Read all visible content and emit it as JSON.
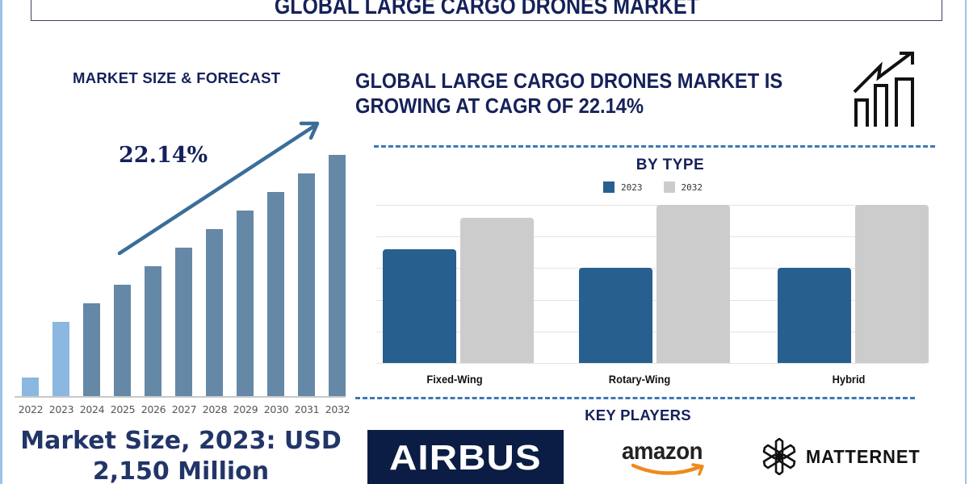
{
  "title": "GLOBAL LARGE CARGO DRONES MARKET",
  "left_panel": {
    "heading": "MARKET SIZE & FORECAST",
    "cagr_label": "22.14%",
    "market_size_line1": "Market Size, 2023: USD",
    "market_size_line2": "2,150 Million"
  },
  "right_panel": {
    "headline_line1": "GLOBAL LARGE CARGO DRONES MARKET IS",
    "headline_line2": "GROWING AT CAGR OF 22.14%",
    "by_type_title": "BY TYPE",
    "key_players_title": "KEY PLAYERS",
    "key_players": [
      "AIRBUS",
      "amazon",
      "MATTERNET"
    ]
  },
  "colors": {
    "title_navy": "#15215a",
    "bar_historic": "#8ab8e0",
    "bar_forecast": "#6588a6",
    "arrow": "#3a6e9a",
    "type_2023": "#275f8e",
    "type_2032": "#cccccc",
    "dash": "#3e78b5",
    "airbus_bg": "#0b1d44",
    "amazon_smile": "#f08a1c"
  },
  "chart_data": [
    {
      "type": "bar",
      "title": "MARKET SIZE & FORECAST",
      "categories": [
        "2022",
        "2023",
        "2024",
        "2025",
        "2026",
        "2027",
        "2028",
        "2029",
        "2030",
        "2031",
        "2032"
      ],
      "values": [
        23,
        92,
        115,
        138,
        161,
        184,
        207,
        230,
        253,
        276,
        299
      ],
      "value_unit": "relative bar height (no axis values shown)",
      "historic_years": [
        "2022",
        "2023"
      ],
      "forecast_years": [
        "2024",
        "2025",
        "2026",
        "2027",
        "2028",
        "2029",
        "2030",
        "2031",
        "2032"
      ],
      "annotation": "22.14%",
      "xlabel": "",
      "ylabel": "",
      "grid": false,
      "legend": "none"
    },
    {
      "type": "bar",
      "title": "BY TYPE",
      "categories": [
        "Fixed-Wing",
        "Rotary-Wing",
        "Hybrid"
      ],
      "series": [
        {
          "name": "2023",
          "values": [
            72,
            60,
            60
          ]
        },
        {
          "name": "2032",
          "values": [
            92,
            100,
            100
          ]
        }
      ],
      "value_unit": "relative % of max bar height (no axis values shown)",
      "ylim": [
        0,
        100
      ],
      "grid": true,
      "legend_position": "top"
    }
  ]
}
